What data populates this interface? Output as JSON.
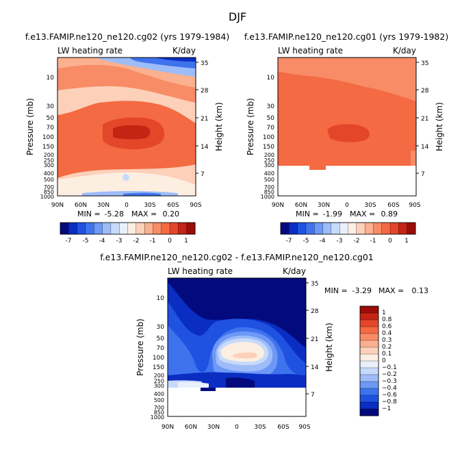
{
  "figure_title": "DJF",
  "chart_data": [
    {
      "type": "heatmap",
      "title": "f.e13.FAMIP.ne120_ne120.cg02 (yrs 1979-1984)",
      "left_string": "LW heating rate",
      "right_string": "K/day",
      "xlabel": "",
      "ylabel": "Pressure (mb)",
      "ylabel_right": "Height (km)",
      "x_ticks": [
        "90N",
        "60N",
        "30N",
        "0",
        "30S",
        "60S",
        "90S"
      ],
      "y_ticks": [
        "10",
        "30",
        "50",
        "70",
        "100",
        "150",
        "200",
        "250",
        "300",
        "400",
        "500",
        "700",
        "850",
        "1000"
      ],
      "y_right_ticks": [
        "35",
        "28",
        "21",
        "14",
        "7"
      ],
      "min_label": "MIN =",
      "min": "-5.28",
      "max_label": "MAX =",
      "max": "0.20",
      "colorbar_labels": [
        "-7",
        "-5",
        "-4",
        "-3",
        "-2",
        "-1",
        "0",
        "1"
      ],
      "colorbar_colors": [
        "#020a7e",
        "#0a2dc2",
        "#1f52e0",
        "#3f73ee",
        "#6d98f5",
        "#9dbcf8",
        "#c7dafb",
        "#e9f0fc",
        "#fdeee2",
        "#fdd0b9",
        "#fbb08f",
        "#f78c66",
        "#f36a43",
        "#e4462a",
        "#c52414",
        "#9c0c08"
      ]
    },
    {
      "type": "heatmap",
      "title": "f.e13.FAMIP.ne120_ne120.cg01 (yrs 1979-1982)",
      "left_string": "LW heating rate",
      "right_string": "K/day",
      "xlabel": "",
      "ylabel": "Pressure (mb)",
      "ylabel_right": "Height (km)",
      "x_ticks": [
        "90N",
        "60N",
        "30N",
        "0",
        "30S",
        "60S",
        "90S"
      ],
      "y_ticks": [
        "10",
        "30",
        "50",
        "70",
        "100",
        "150",
        "200",
        "250",
        "300",
        "400",
        "500",
        "700",
        "850",
        "1000"
      ],
      "y_right_ticks": [
        "35",
        "28",
        "21",
        "14",
        "7"
      ],
      "min_label": "MIN =",
      "min": "-1.99",
      "max_label": "MAX =",
      "max": "0.89",
      "colorbar_labels": [
        "-7",
        "-5",
        "-4",
        "-3",
        "-2",
        "-1",
        "0",
        "1"
      ],
      "colorbar_colors": [
        "#020a7e",
        "#0a2dc2",
        "#1f52e0",
        "#3f73ee",
        "#6d98f5",
        "#9dbcf8",
        "#c7dafb",
        "#e9f0fc",
        "#fdeee2",
        "#fdd0b9",
        "#fbb08f",
        "#f78c66",
        "#f36a43",
        "#e4462a",
        "#c52414",
        "#9c0c08"
      ]
    },
    {
      "type": "heatmap",
      "title": "f.e13.FAMIP.ne120_ne120.cg02 - f.e13.FAMIP.ne120_ne120.cg01",
      "left_string": "LW heating rate",
      "right_string": "K/day",
      "xlabel": "",
      "ylabel": "Pressure (mb)",
      "ylabel_right": "Height (km)",
      "x_ticks": [
        "90N",
        "60N",
        "30N",
        "0",
        "30S",
        "60S",
        "90S"
      ],
      "y_ticks": [
        "10",
        "30",
        "50",
        "70",
        "100",
        "150",
        "200",
        "250",
        "300",
        "400",
        "500",
        "700",
        "850",
        "1000"
      ],
      "y_right_ticks": [
        "35",
        "28",
        "21",
        "14",
        "7"
      ],
      "min_label": "MIN =",
      "min": "-3.29",
      "max_label": "MAX =",
      "max": "0.13",
      "colorbar_labels": [
        "1",
        "0.8",
        "0.6",
        "0.4",
        "0.3",
        "0.2",
        "0.1",
        "0",
        "−0.1",
        "−0.2",
        "−0.3",
        "−0.4",
        "−0.6",
        "−0.8",
        "−1"
      ],
      "colorbar_colors": [
        "#9c0c08",
        "#c52414",
        "#e4462a",
        "#f36a43",
        "#f78c66",
        "#fbb08f",
        "#fdd0b9",
        "#fdeee2",
        "#e9f0fc",
        "#c7dafb",
        "#9dbcf8",
        "#6d98f5",
        "#3f73ee",
        "#1f52e0",
        "#0a2dc2",
        "#020a7e"
      ]
    }
  ]
}
